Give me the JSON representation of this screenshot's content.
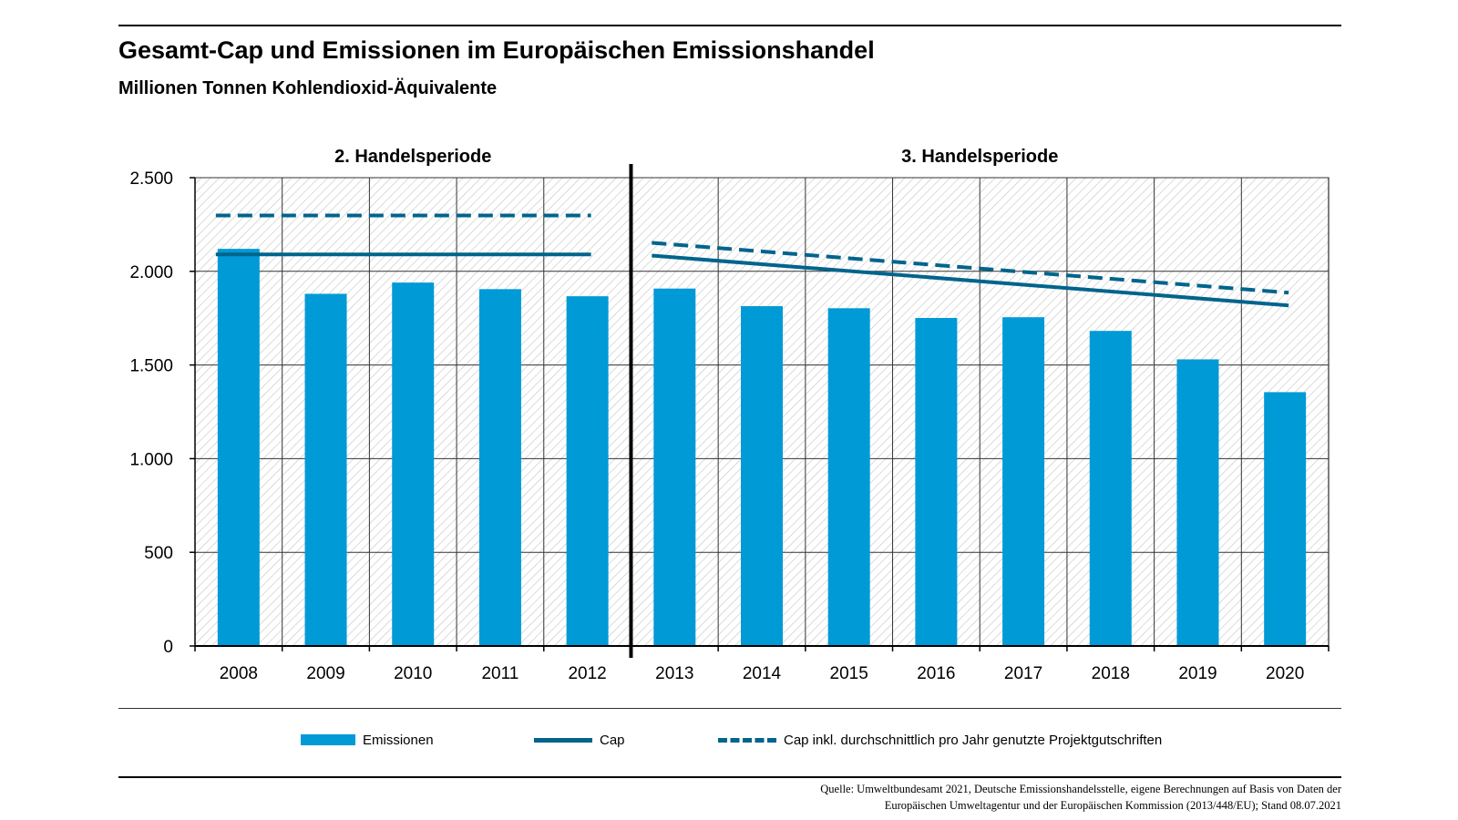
{
  "title": "Gesamt-Cap und Emissionen im Europäischen Emissionshandel",
  "subtitle": "Millionen Tonnen Kohlendioxid-Äquivalente",
  "colors": {
    "emissions": "#009ad6",
    "cap": "#00648c",
    "grid": "#000000"
  },
  "legend": {
    "emissions": "Emissionen",
    "cap": "Cap",
    "cap_project": "Cap inkl. durchschnittlich pro Jahr genutzte Projektgutschriften"
  },
  "source": {
    "line1": "Quelle: Umweltbundesamt 2021, Deutsche Emissionshandelsstelle, eigene Berechnungen auf Basis von Daten der",
    "line2": "Europäischen Umweltagentur und der Europäischen Kommission (2013/448/EU); Stand 08.07.2021"
  },
  "chart_data": {
    "type": "bar",
    "title": "Gesamt-Cap und Emissionen im Europäischen Emissionshandel",
    "subtitle": "Millionen Tonnen Kohlendioxid-Äquivalente",
    "categories": [
      "2008",
      "2009",
      "2010",
      "2011",
      "2012",
      "2013",
      "2014",
      "2015",
      "2016",
      "2017",
      "2018",
      "2019",
      "2020"
    ],
    "ylim": [
      0,
      2500
    ],
    "yticks": [
      0,
      500,
      1000,
      1500,
      2000,
      2500
    ],
    "ytick_labels": [
      "0",
      "500",
      "1.000",
      "1.500",
      "2.000",
      "2.500"
    ],
    "grid": true,
    "periods": [
      {
        "label": "2. Handelsperiode",
        "from": "2008",
        "to": "2012"
      },
      {
        "label": "3. Handelsperiode",
        "from": "2013",
        "to": "2020"
      }
    ],
    "series": [
      {
        "name": "Emissionen",
        "kind": "bar",
        "values": [
          2120,
          1880,
          1940,
          1905,
          1867,
          1908,
          1814,
          1803,
          1751,
          1755,
          1682,
          1530,
          1355
        ]
      },
      {
        "name": "Cap",
        "kind": "line",
        "values": [
          2090,
          2090,
          2090,
          2090,
          2090,
          2084,
          2046,
          2008,
          1970,
          1932,
          1894,
          1856,
          1818
        ]
      },
      {
        "name": "Cap inkl. durchschnittlich pro Jahr genutzte Projektgutschriften",
        "kind": "dashed-line",
        "values": [
          2298,
          2298,
          2298,
          2298,
          2298,
          2152,
          2114,
          2076,
          2038,
          2000,
          1962,
          1924,
          1886
        ]
      }
    ],
    "legend_position": "bottom"
  }
}
